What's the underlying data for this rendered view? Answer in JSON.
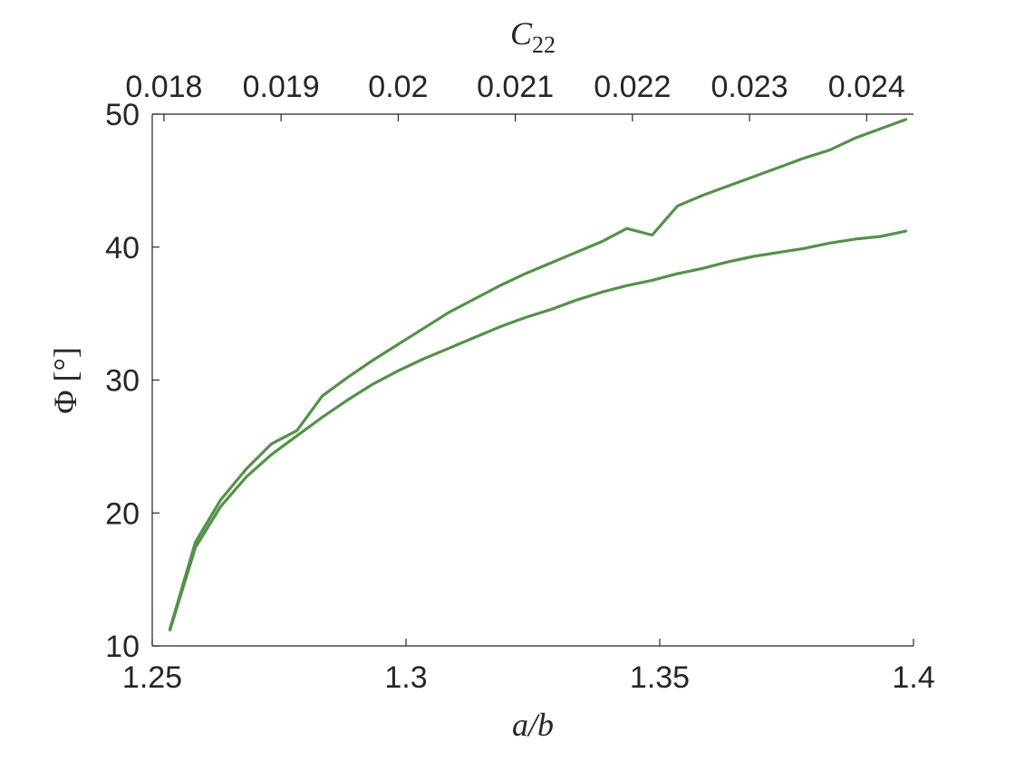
{
  "chart_data": {
    "type": "line",
    "title": "",
    "xlabel": {
      "main": "a/b"
    },
    "ylabel": {
      "main": "Φ [°]"
    },
    "x2label": {
      "main": "C",
      "sub": "22"
    },
    "xlim": [
      1.25,
      1.4
    ],
    "ylim": [
      10,
      50
    ],
    "x2lim": [
      0.0179,
      0.0244
    ],
    "xticks": [
      "1.25",
      "1.3",
      "1.35",
      "1.4"
    ],
    "yticks": [
      "10",
      "20",
      "30",
      "40",
      "50"
    ],
    "x2ticks": [
      "0.018",
      "0.019",
      "0.02",
      "0.021",
      "0.022",
      "0.023",
      "0.024"
    ],
    "grid": false,
    "legend": "none",
    "color": "#55914a",
    "series": [
      {
        "x": [
          1.2535,
          1.2585,
          1.2635,
          1.2685,
          1.2735,
          1.2785,
          1.2835,
          1.2885,
          1.2935,
          1.2985,
          1.3035,
          1.3085,
          1.3135,
          1.3185,
          1.3235,
          1.3285,
          1.3335,
          1.3385,
          1.3435,
          1.3485,
          1.3535,
          1.3585,
          1.3635,
          1.3685,
          1.3735,
          1.3785,
          1.3835,
          1.3885,
          1.3935,
          1.3985
        ],
        "values": [
          11.3,
          17.8,
          21.0,
          23.3,
          25.2,
          26.2,
          28.8,
          30.2,
          31.5,
          32.7,
          33.9,
          35.1,
          36.1,
          37.1,
          38.0,
          38.8,
          39.6,
          40.4,
          41.4,
          40.9,
          43.1,
          43.9,
          44.6,
          45.3,
          46.0,
          46.7,
          47.3,
          48.2,
          48.9,
          49.6
        ]
      },
      {
        "x": [
          1.2535,
          1.2585,
          1.2635,
          1.2685,
          1.2735,
          1.2785,
          1.2835,
          1.2885,
          1.2935,
          1.2985,
          1.3035,
          1.3085,
          1.3135,
          1.3185,
          1.3235,
          1.3285,
          1.3335,
          1.3385,
          1.3435,
          1.3485,
          1.3535,
          1.3585,
          1.3635,
          1.3685,
          1.3735,
          1.3785,
          1.3835,
          1.3885,
          1.3935,
          1.3985
        ],
        "values": [
          11.2,
          17.4,
          20.5,
          22.7,
          24.4,
          25.8,
          27.2,
          28.5,
          29.7,
          30.7,
          31.6,
          32.4,
          33.2,
          34.0,
          34.7,
          35.3,
          36.0,
          36.6,
          37.1,
          37.5,
          38.0,
          38.4,
          38.9,
          39.3,
          39.6,
          39.9,
          40.3,
          40.6,
          40.8,
          41.2
        ]
      }
    ]
  }
}
